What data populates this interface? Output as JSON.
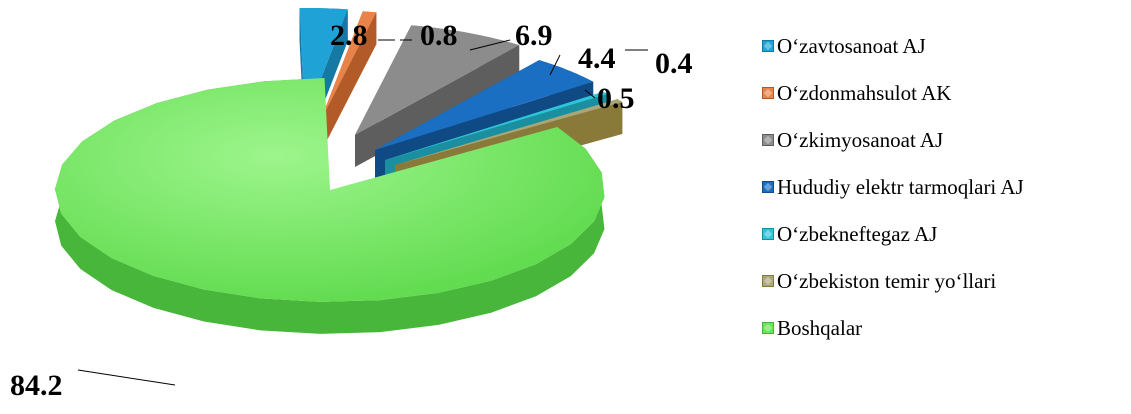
{
  "chart_data": {
    "type": "pie",
    "title": "",
    "slices": [
      {
        "label": "O‘zavtosanoat AJ",
        "value": 2.8,
        "color": "#1fa3d6",
        "side": "#147aa3",
        "label_text": "2.8"
      },
      {
        "label": "O‘zdonmahsulot AK",
        "value": 0.8,
        "color": "#e8844a",
        "side": "#b25a28",
        "label_text": "0.8"
      },
      {
        "label": "O‘zkimyosanoat AJ",
        "value": 6.9,
        "color": "#8c8c8c",
        "side": "#5e5e5e",
        "label_text": "6.9"
      },
      {
        "label": "Hududiy elektr tarmoqlari  AJ",
        "value": 4.4,
        "color": "#1a6fc2",
        "side": "#0f4a85",
        "label_text": "4.4"
      },
      {
        "label": "O‘zbekneftegaz AJ",
        "value": 0.4,
        "color": "#2ec5d8",
        "side": "#1a8fa0",
        "label_text": "0.4"
      },
      {
        "label": "O‘zbekiston temir yo‘llari",
        "value": 0.5,
        "color": "#a9a77a",
        "side": "#8a7a3a",
        "label_text": "0.5"
      },
      {
        "label": "Boshqalar",
        "value": 84.2,
        "color": "#66e455",
        "side": "#48b63a",
        "label_text": "84.2"
      }
    ],
    "legend_position": "right"
  }
}
